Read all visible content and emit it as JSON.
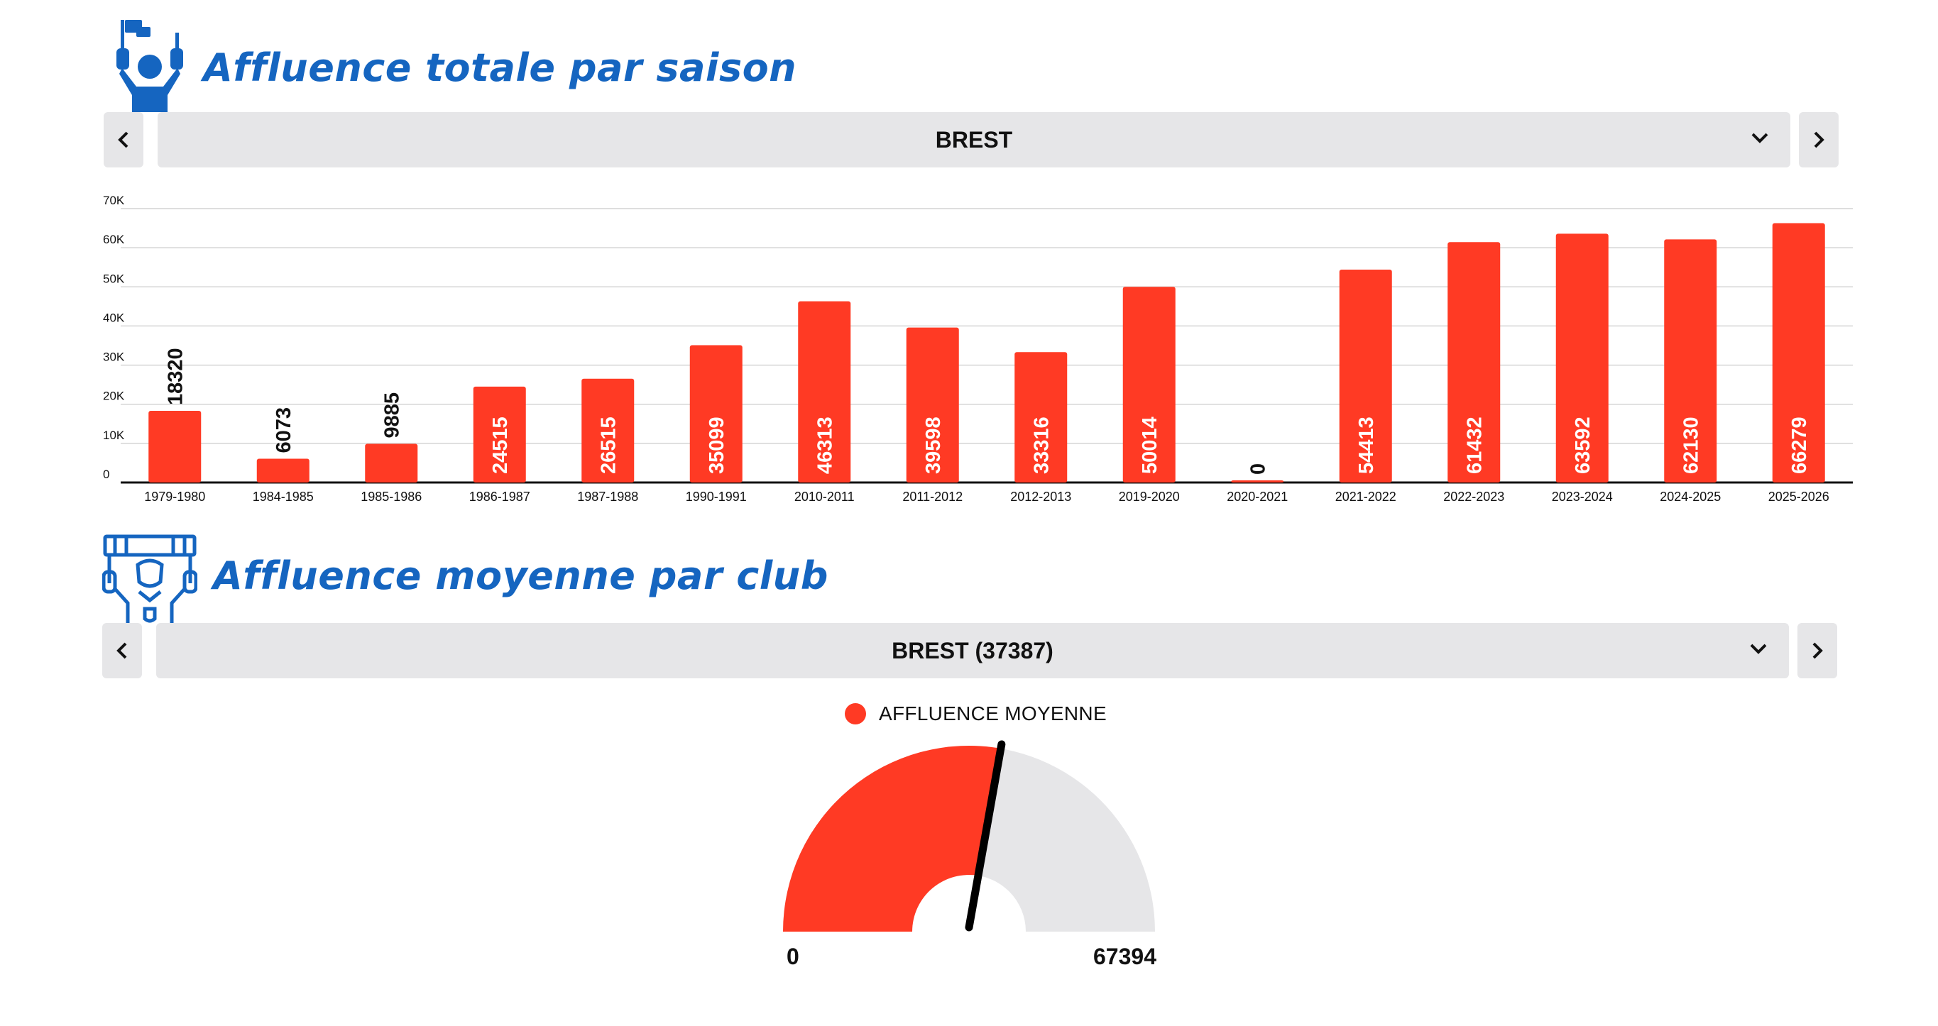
{
  "section1": {
    "title": "Affluence totale par saison",
    "icon": "fan-flag-icon",
    "selector": {
      "value": "BREST",
      "prev_icon": "chevron-left-icon",
      "next_icon": "chevron-right-icon",
      "dropdown_icon": "chevron-down-icon"
    }
  },
  "section2": {
    "title": "Affluence moyenne par club",
    "icon": "fan-banner-icon",
    "selector": {
      "value": "BREST (37387)",
      "prev_icon": "chevron-left-icon",
      "next_icon": "chevron-right-icon",
      "dropdown_icon": "chevron-down-icon"
    }
  },
  "colors": {
    "accent": "#ff3a24",
    "title": "#1565c0",
    "track": "#e6e6e8",
    "needle": "#000000"
  },
  "chart_data": [
    {
      "type": "bar",
      "categories": [
        "1979-1980",
        "1984-1985",
        "1985-1986",
        "1986-1987",
        "1987-1988",
        "1990-1991",
        "2010-2011",
        "2011-2012",
        "2012-2013",
        "2019-2020",
        "2020-2021",
        "2021-2022",
        "2022-2023",
        "2023-2024",
        "2024-2025",
        "2025-2026"
      ],
      "values": [
        18320,
        6073,
        9885,
        24515,
        26515,
        35099,
        46313,
        39598,
        33316,
        50014,
        0,
        54413,
        61432,
        63592,
        62130,
        66279
      ],
      "ylim": [
        0,
        70000
      ],
      "yticks": [
        {
          "value": 0,
          "label": "0"
        },
        {
          "value": 10000,
          "label": "10K"
        },
        {
          "value": 20000,
          "label": "20K"
        },
        {
          "value": 30000,
          "label": "30K"
        },
        {
          "value": 40000,
          "label": "40K"
        },
        {
          "value": 50000,
          "label": "50K"
        },
        {
          "value": 60000,
          "label": "60K"
        },
        {
          "value": 70000,
          "label": "70K"
        }
      ],
      "grid": true,
      "title": "",
      "xlabel": "",
      "ylabel": ""
    },
    {
      "type": "gauge",
      "series": [
        {
          "name": "AFFLUENCE MOYENNE",
          "value": 37387
        }
      ],
      "min": 0,
      "max": 67394,
      "min_label": "0",
      "max_label": "67394",
      "legend": "top"
    }
  ]
}
